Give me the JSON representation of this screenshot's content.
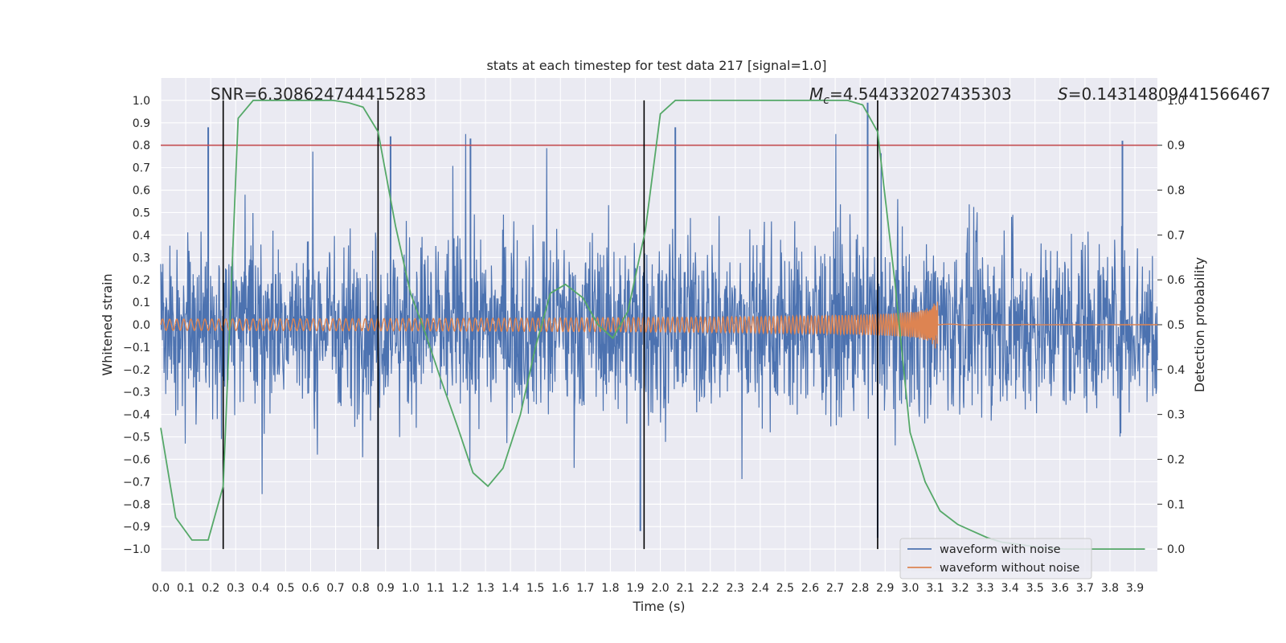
{
  "chart_data": {
    "type": "line",
    "title": "stats at each timestep for test data 217 [signal=1.0]",
    "xlabel": "Time (s)",
    "ylabel": "Whitened strain",
    "ylabel_right": "Detection probability",
    "xlim": [
      0.0,
      3.99
    ],
    "ylim": [
      -1.1,
      1.1
    ],
    "ylim_right": [
      -0.05,
      1.05
    ],
    "x_ticks": [
      "0.0",
      "0.1",
      "0.2",
      "0.3",
      "0.4",
      "0.5",
      "0.6",
      "0.7",
      "0.8",
      "0.9",
      "1.0",
      "1.1",
      "1.2",
      "1.3",
      "1.4",
      "1.5",
      "1.6",
      "1.7",
      "1.8",
      "1.9",
      "2.0",
      "2.1",
      "2.2",
      "2.3",
      "2.4",
      "2.5",
      "2.6",
      "2.7",
      "2.8",
      "2.9",
      "3.0",
      "3.1",
      "3.2",
      "3.3",
      "3.4",
      "3.5",
      "3.6",
      "3.7",
      "3.8",
      "3.9"
    ],
    "y_ticks": [
      "1.0",
      "0.9",
      "0.8",
      "0.7",
      "0.6",
      "0.5",
      "0.4",
      "0.3",
      "0.2",
      "0.1",
      "0.0",
      "−0.1",
      "−0.2",
      "−0.3",
      "−0.4",
      "−0.5",
      "−0.6",
      "−0.7",
      "−0.8",
      "−0.9",
      "−1.0"
    ],
    "y_tick_values": [
      1.0,
      0.9,
      0.8,
      0.7,
      0.6,
      0.5,
      0.4,
      0.3,
      0.2,
      0.1,
      0.0,
      -0.1,
      -0.2,
      -0.3,
      -0.4,
      -0.5,
      -0.6,
      -0.7,
      -0.8,
      -0.9,
      -1.0
    ],
    "y2_ticks": [
      "1.0",
      "0.9",
      "0.8",
      "0.7",
      "0.6",
      "0.5",
      "0.4",
      "0.3",
      "0.2",
      "0.1",
      "0.0"
    ],
    "y2_tick_values": [
      1.0,
      0.9,
      0.8,
      0.7,
      0.6,
      0.5,
      0.4,
      0.3,
      0.2,
      0.1,
      0.0
    ],
    "grid": true,
    "legend_position": "lower-right",
    "annotations": {
      "snr": "SNR=6.308624744415283",
      "mc_symbol": "M",
      "mc_sub": "c",
      "mc_value": "=4.544332027435303",
      "s_symbol": "S",
      "s_value": "=0.14314809441566467"
    },
    "threshold_right": 0.9,
    "vertical_lines_x": [
      0.25,
      0.87,
      1.935,
      2.87
    ],
    "series": [
      {
        "name": "waveform with noise",
        "color": "#4c72b0",
        "note_values": "dense noise, amplitude approx ±0.4 with spikes to ±0.95; drawn from seeded generator",
        "spikes": [
          [
            0.19,
            0.88
          ],
          [
            0.87,
            -0.9
          ],
          [
            0.92,
            0.84
          ],
          [
            1.24,
            0.83
          ],
          [
            1.92,
            -0.92
          ],
          [
            2.06,
            0.88
          ],
          [
            2.83,
            0.99
          ],
          [
            2.87,
            -0.95
          ],
          [
            3.85,
            0.82
          ]
        ]
      },
      {
        "name": "waveform without noise",
        "color": "#dd8452",
        "chirp_end_s": 3.11,
        "chirp_peak_amplitude": 0.15,
        "chirp_start_amplitude": 0.025
      },
      {
        "name": "",
        "color": "#55a868",
        "axis": "right",
        "x": [
          0.0,
          0.06,
          0.125,
          0.19,
          0.25,
          0.31,
          0.37,
          0.44,
          0.5,
          0.56,
          0.62,
          0.69,
          0.75,
          0.81,
          0.87,
          0.94,
          1.0,
          1.06,
          1.12,
          1.19,
          1.25,
          1.31,
          1.37,
          1.44,
          1.5,
          1.56,
          1.62,
          1.69,
          1.75,
          1.81,
          1.87,
          1.94,
          2.0,
          2.06,
          2.12,
          2.19,
          2.25,
          2.31,
          2.37,
          2.44,
          2.5,
          2.56,
          2.62,
          2.69,
          2.75,
          2.81,
          2.87,
          2.94,
          3.0,
          3.06,
          3.12,
          3.19,
          3.25,
          3.31,
          3.37,
          3.44,
          3.5,
          3.56,
          3.62,
          3.69,
          3.75,
          3.81,
          3.87,
          3.94
        ],
        "values": [
          0.27,
          0.07,
          0.02,
          0.02,
          0.14,
          0.96,
          1.0,
          1.0,
          1.0,
          1.0,
          1.0,
          1.0,
          0.995,
          0.985,
          0.93,
          0.72,
          0.57,
          0.48,
          0.38,
          0.27,
          0.17,
          0.14,
          0.18,
          0.3,
          0.45,
          0.57,
          0.59,
          0.56,
          0.5,
          0.47,
          0.53,
          0.71,
          0.97,
          1.0,
          1.0,
          1.0,
          1.0,
          1.0,
          1.0,
          1.0,
          1.0,
          1.0,
          1.0,
          1.0,
          1.0,
          0.99,
          0.93,
          0.59,
          0.26,
          0.15,
          0.085,
          0.055,
          0.04,
          0.025,
          0.015,
          0.01,
          0.005,
          0.002,
          0.0,
          0.0,
          0.0,
          0.0,
          0.0,
          0.0
        ]
      },
      {
        "name": "",
        "color": "#c44e52",
        "axis": "right",
        "kind": "horizontal-threshold",
        "value": 0.9
      }
    ]
  }
}
